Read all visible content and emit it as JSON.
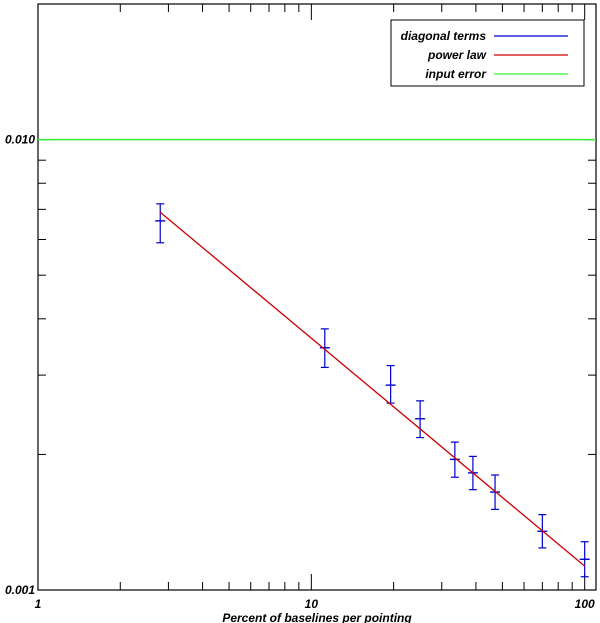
{
  "chart_data": {
    "type": "scatter",
    "xlabel": "Percent of baselines per pointing",
    "ylabel": "",
    "x_scale": "log",
    "y_scale": "log",
    "xlim": [
      1,
      110
    ],
    "ylim": [
      0.001,
      0.02
    ],
    "x_ticks": [
      {
        "value": 1,
        "label": "1"
      },
      {
        "value": 10,
        "label": "10"
      },
      {
        "value": 100,
        "label": "100"
      }
    ],
    "y_ticks": [
      {
        "value": 0.001,
        "label": "0.001"
      },
      {
        "value": 0.01,
        "label": "0.010"
      }
    ],
    "legend_position": "top-right",
    "series": [
      {
        "name": "diagonal terms",
        "color": "#0000cc",
        "style": "errorbar",
        "points": [
          {
            "x": 2.8,
            "y": 0.0066,
            "err_low": 0.0059,
            "err_high": 0.0072
          },
          {
            "x": 11.2,
            "y": 0.00345,
            "err_low": 0.00312,
            "err_high": 0.0038
          },
          {
            "x": 19.5,
            "y": 0.00285,
            "err_low": 0.0026,
            "err_high": 0.00315
          },
          {
            "x": 25.0,
            "y": 0.0024,
            "err_low": 0.00218,
            "err_high": 0.00263
          },
          {
            "x": 33.5,
            "y": 0.00195,
            "err_low": 0.00178,
            "err_high": 0.00213
          },
          {
            "x": 39.0,
            "y": 0.00182,
            "err_low": 0.00167,
            "err_high": 0.00198
          },
          {
            "x": 47.0,
            "y": 0.00165,
            "err_low": 0.00151,
            "err_high": 0.0018
          },
          {
            "x": 70.0,
            "y": 0.00135,
            "err_low": 0.00124,
            "err_high": 0.00147
          },
          {
            "x": 100.0,
            "y": 0.00117,
            "err_low": 0.00107,
            "err_high": 0.00128
          }
        ]
      },
      {
        "name": "power law",
        "color": "#cc0000",
        "style": "line",
        "x": [
          2.8,
          100.0
        ],
        "y": [
          0.0069,
          0.00113
        ]
      },
      {
        "name": "input error",
        "color": "#33ee33",
        "style": "hline",
        "y_value": 0.01
      }
    ]
  }
}
